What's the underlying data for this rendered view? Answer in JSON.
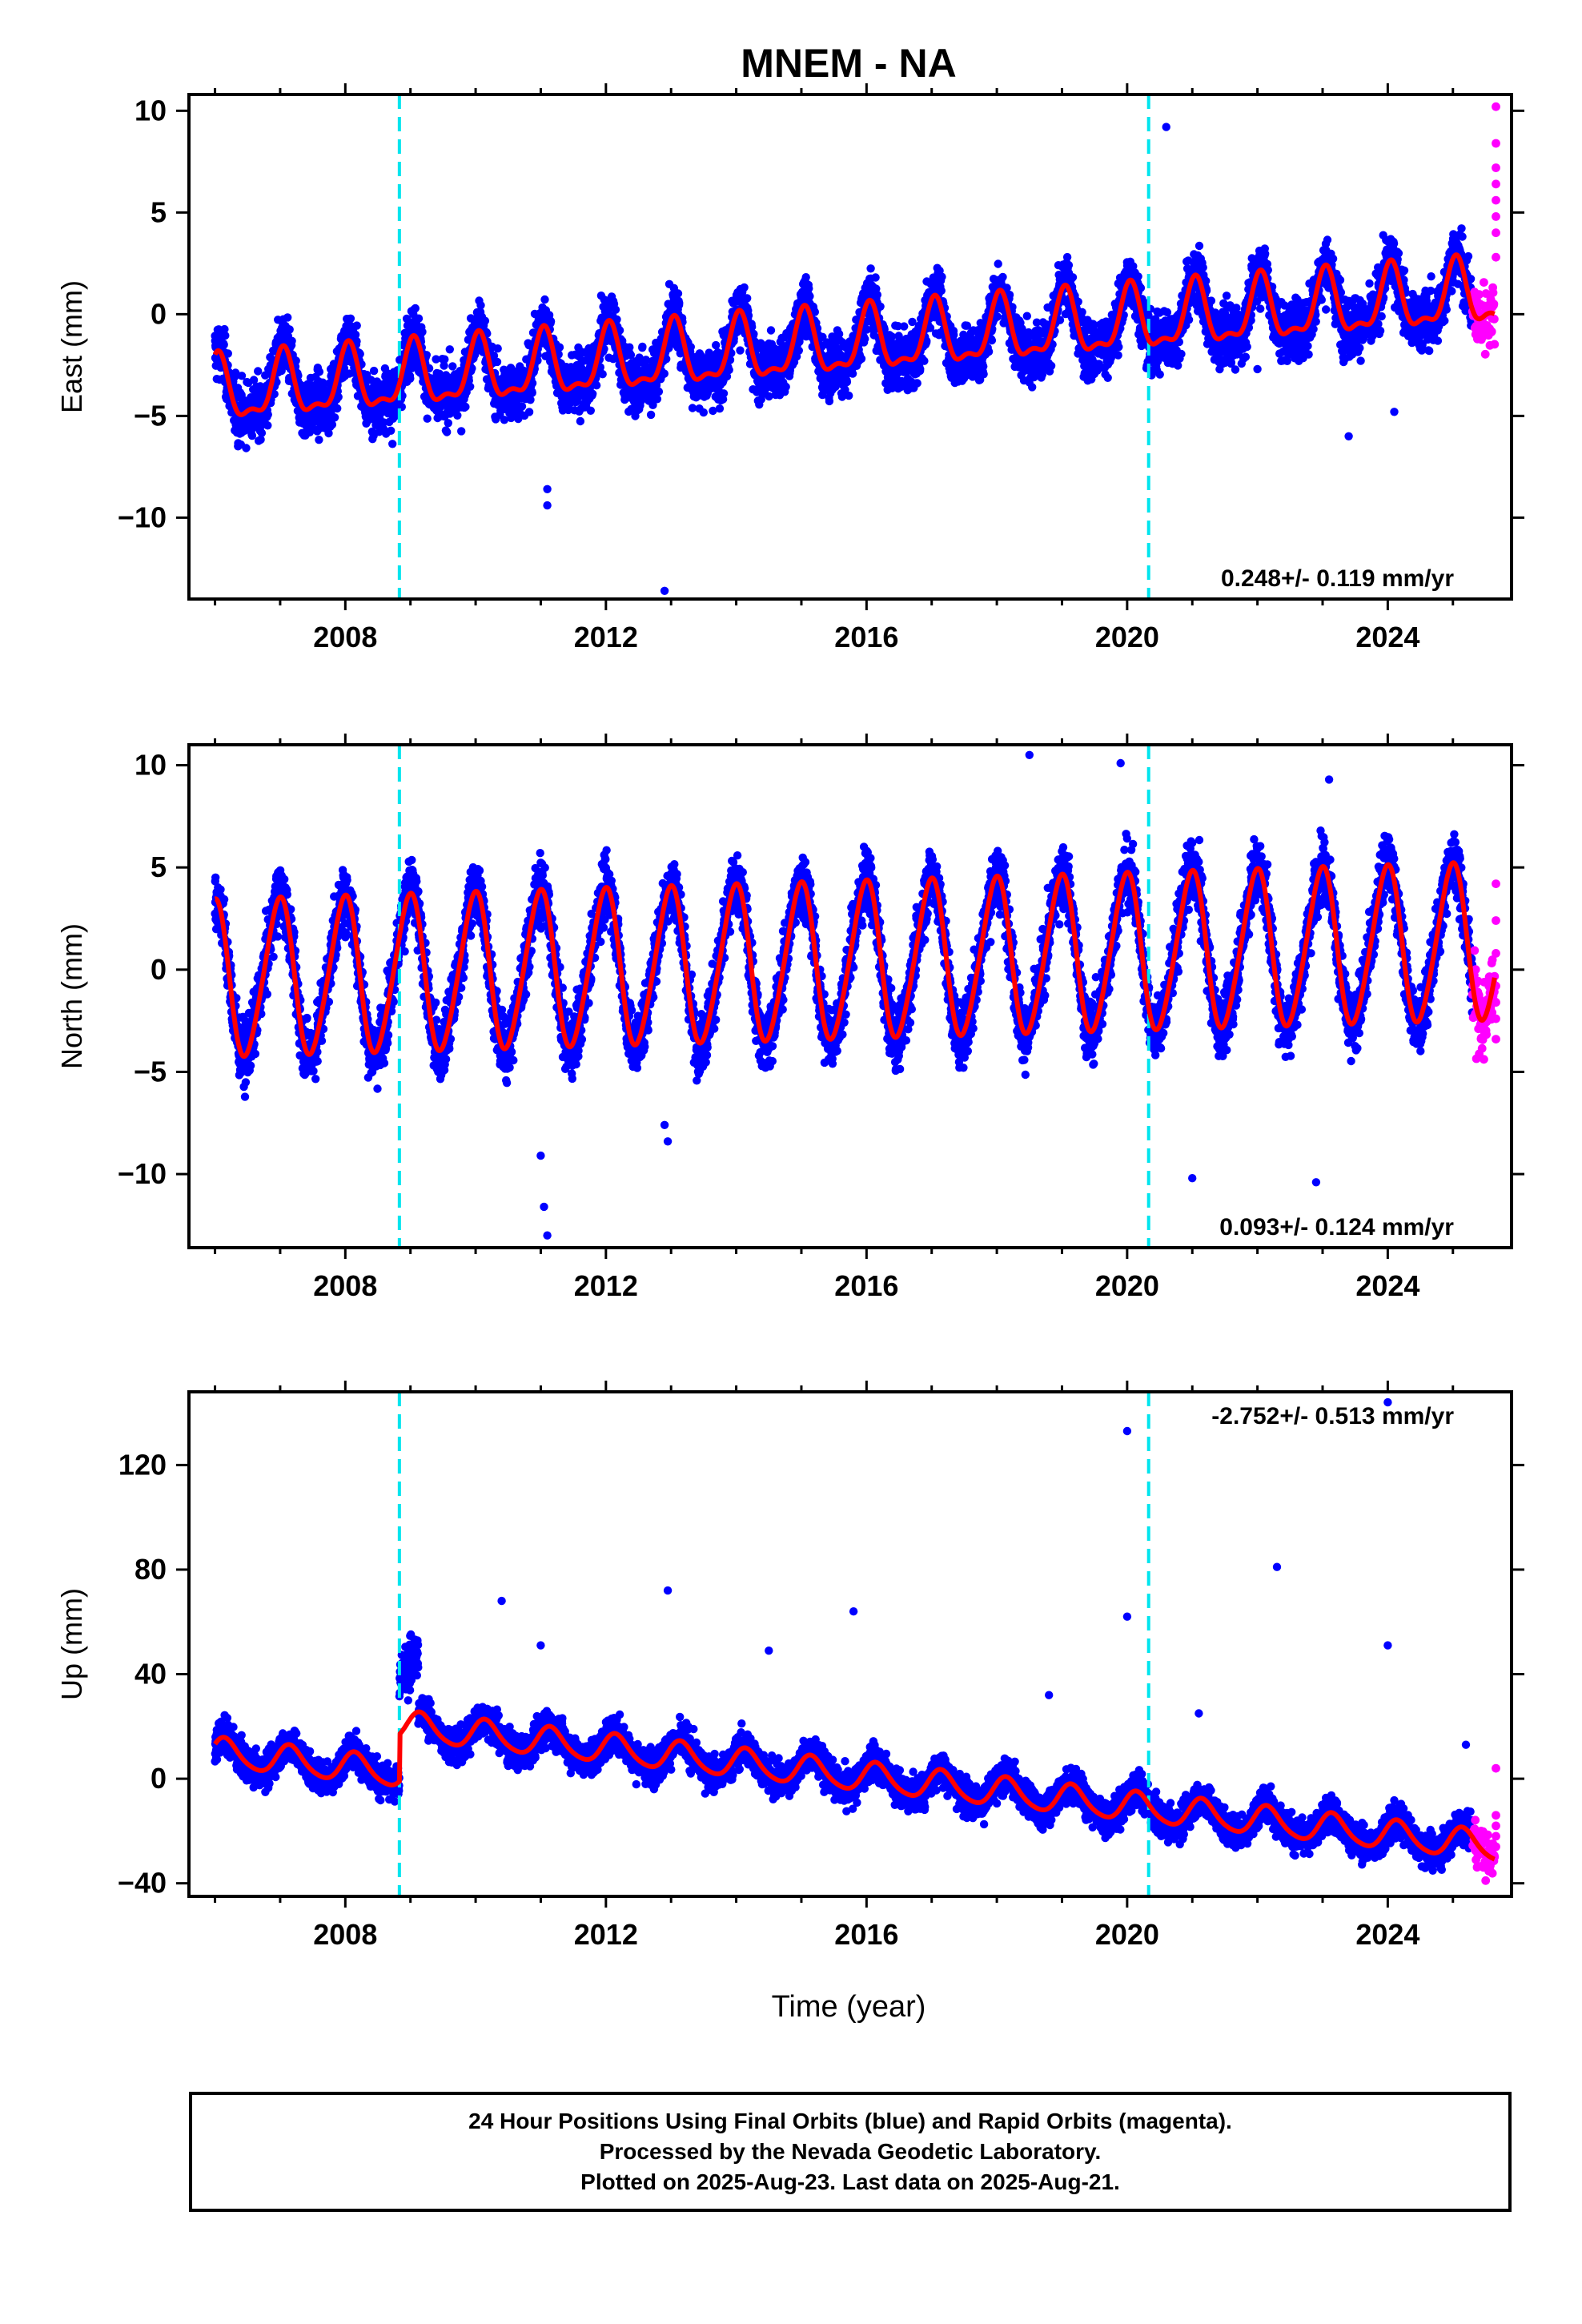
{
  "chart_data": {
    "type": "scatter",
    "title": "MNEM - NA",
    "xlabel": "Time (year)",
    "xlim": [
      2005.6,
      2025.9
    ],
    "x_ticks": [
      "2008",
      "2012",
      "2016",
      "2020",
      "2024"
    ],
    "x_tick_values": [
      2008,
      2012,
      2016,
      2020,
      2024
    ],
    "breaks": [
      2008.83,
      2020.33
    ],
    "colors": {
      "final_orbits": "#0000ff",
      "rapid_orbits": "#ff00ff",
      "model": "#ff0000",
      "breaks": "#00e5ee"
    },
    "data_start": 2006.0,
    "final_end": 2025.3,
    "rapid_end": 2025.64,
    "panels": [
      {
        "name": "east",
        "ylabel": "East (mm)",
        "ylim": [
          -14,
          10.8
        ],
        "y_ticks": [
          "10",
          "5",
          "0",
          "−5",
          "−10"
        ],
        "y_tick_values": [
          10,
          5,
          0,
          -5,
          -10
        ],
        "rate_label": "0.248+/- 0.119 mm/yr",
        "model": {
          "intercept": -3.9,
          "rate": 0.248,
          "t0": 2006.0,
          "annual_amp": 1.5,
          "annual_phase": 1.3,
          "semi_amp": 0.6,
          "semi_phase": 0.9,
          "offsets": []
        },
        "scatter_sd": 1.2,
        "outliers": [
          [
            2011.1,
            -8.6
          ],
          [
            2011.1,
            -9.4
          ],
          [
            2012.9,
            -13.6
          ],
          [
            2020.6,
            9.2
          ],
          [
            2022.0,
            -2.7
          ],
          [
            2023.4,
            -6.0
          ],
          [
            2024.1,
            -4.8
          ]
        ],
        "rapid_points": [
          [
            2025.66,
            10.2
          ],
          [
            2025.66,
            8.4
          ],
          [
            2025.66,
            7.2
          ],
          [
            2025.66,
            6.4
          ],
          [
            2025.66,
            5.6
          ],
          [
            2025.66,
            4.8
          ],
          [
            2025.66,
            4.0
          ],
          [
            2025.66,
            2.8
          ]
        ]
      },
      {
        "name": "north",
        "ylabel": "North (mm)",
        "ylim": [
          -13.6,
          11
        ],
        "y_ticks": [
          "10",
          "5",
          "0",
          "−5",
          "−10"
        ],
        "y_tick_values": [
          10,
          5,
          0,
          -5,
          -10
        ],
        "rate_label": "0.093+/- 0.124 mm/yr",
        "model": {
          "intercept": -0.5,
          "rate": 0.093,
          "t0": 2006.0,
          "annual_amp": 3.8,
          "annual_phase": 1.7,
          "semi_amp": 0.4,
          "semi_phase": 0.5,
          "offsets": []
        },
        "scatter_sd": 1.3,
        "outliers": [
          [
            2011.0,
            -9.1
          ],
          [
            2011.05,
            -11.6
          ],
          [
            2011.1,
            -13.0
          ],
          [
            2012.9,
            -7.6
          ],
          [
            2012.95,
            -8.4
          ],
          [
            2018.5,
            10.5
          ],
          [
            2019.9,
            10.1
          ],
          [
            2021.0,
            -10.2
          ],
          [
            2022.9,
            -10.4
          ],
          [
            2023.1,
            9.3
          ]
        ],
        "rapid_points": [
          [
            2025.66,
            4.2
          ],
          [
            2025.66,
            2.4
          ],
          [
            2025.66,
            0.8
          ],
          [
            2025.66,
            -0.8
          ],
          [
            2025.66,
            -1.6
          ],
          [
            2025.66,
            -2.4
          ],
          [
            2025.66,
            -3.4
          ]
        ]
      },
      {
        "name": "up",
        "ylabel": "Up (mm)",
        "ylim": [
          -45,
          148
        ],
        "y_ticks": [
          "120",
          "80",
          "40",
          "0",
          "−40"
        ],
        "y_tick_values": [
          120,
          80,
          40,
          0,
          -40
        ],
        "rate_label": "-2.752+/- 0.513 mm/yr",
        "model": {
          "intercept": 10,
          "rate": -2.752,
          "t0": 2006.0,
          "annual_amp": 5.5,
          "annual_phase": 0.6,
          "semi_amp": 0.8,
          "semi_phase": 0.2,
          "offsets": [
            [
              2008.83,
              18
            ]
          ]
        },
        "scatter_sd": 5.5,
        "outliers": [
          [
            2010.4,
            68
          ],
          [
            2011.0,
            51
          ],
          [
            2012.95,
            72
          ],
          [
            2014.5,
            49
          ],
          [
            2015.8,
            64
          ],
          [
            2018.8,
            32
          ],
          [
            2020.0,
            133
          ],
          [
            2020.0,
            62
          ],
          [
            2021.1,
            25
          ],
          [
            2022.3,
            81
          ],
          [
            2024.0,
            51
          ],
          [
            2024.0,
            144
          ],
          [
            2025.2,
            13
          ]
        ],
        "rapid_points": [
          [
            2025.66,
            4
          ],
          [
            2025.66,
            -14
          ],
          [
            2025.66,
            -18
          ],
          [
            2025.66,
            -22
          ],
          [
            2025.66,
            -26
          ]
        ]
      }
    ]
  },
  "caption": {
    "line1": "24 Hour Positions Using Final Orbits (blue) and Rapid Orbits (magenta).",
    "line2": "Processed by the Nevada Geodetic Laboratory.",
    "line3": "Plotted on 2025-Aug-23. Last data on 2025-Aug-21."
  }
}
